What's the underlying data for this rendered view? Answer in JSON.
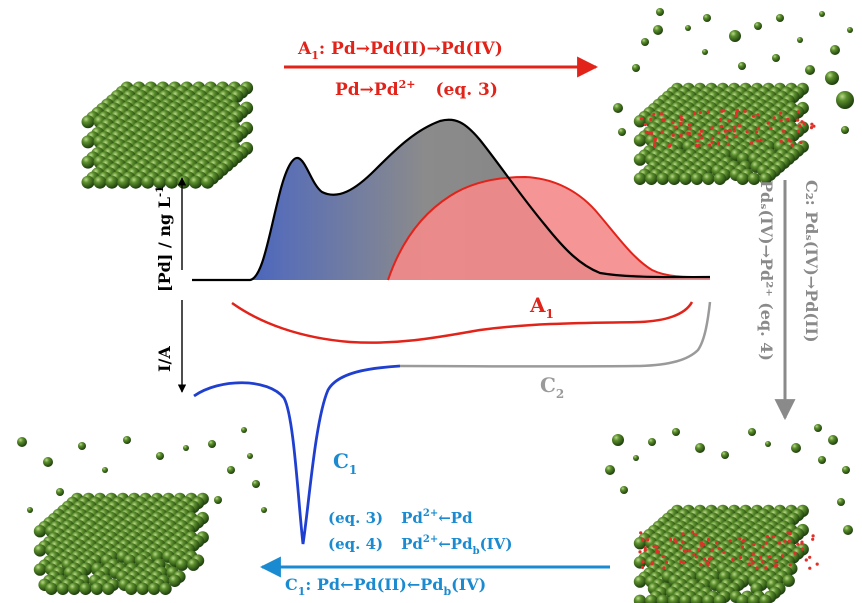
{
  "colors": {
    "red": "#e2231a",
    "blue": "#1f5fbf",
    "gray": "#8a8a8a",
    "green": "#2e6b1c",
    "black": "#000000",
    "c1_label": "#1a8bd0"
  },
  "axes": {
    "upper_ylabel": "[Pd] / ng L",
    "upper_ylabel_sup": "-1",
    "lower_ylabel": "I/A"
  },
  "top_arrow": {
    "line1_prefix": "A",
    "line1_sub": "1",
    "line1_rest": ": Pd→Pd(II)→Pd(IV)",
    "line2_main": "Pd→Pd",
    "line2_sup": "2+",
    "line2_eq": "(eq. 3)"
  },
  "right_arrow": {
    "col1": "C₂: Pdₛ(IV)→Pd(II)",
    "col2": "Pdₛ(IV)→Pd²⁺ (eq. 4)"
  },
  "bottom_arrow": {
    "prefix": "C",
    "prefix_sub": "1",
    "rest": ": Pd←Pd(II)←Pd",
    "rest_sub": "b",
    "rest_end": "(IV)"
  },
  "equations": {
    "eq3_tag": "(eq. 3)",
    "eq3_main": "Pd",
    "eq3_sup": "2+",
    "eq3_rest": "←Pd",
    "eq4_tag": "(eq. 4)",
    "eq4_main": "Pd",
    "eq4_sup": "2+",
    "eq4_rest": "←Pd",
    "eq4_sub": "b",
    "eq4_end": "(IV)"
  },
  "curve_labels": {
    "a1": "A",
    "a1_sub": "1",
    "c2": "C",
    "c2_sub": "2",
    "c1": "C",
    "c1_sub": "1"
  },
  "icons": {
    "top_left": "pd-slab-intact-icon",
    "top_right": "pd-slab-oxidized-icon",
    "bottom_right": "pd-slab-oxidized-dissolving-icon",
    "bottom_left": "pd-slab-reduced-dissolving-icon"
  }
}
